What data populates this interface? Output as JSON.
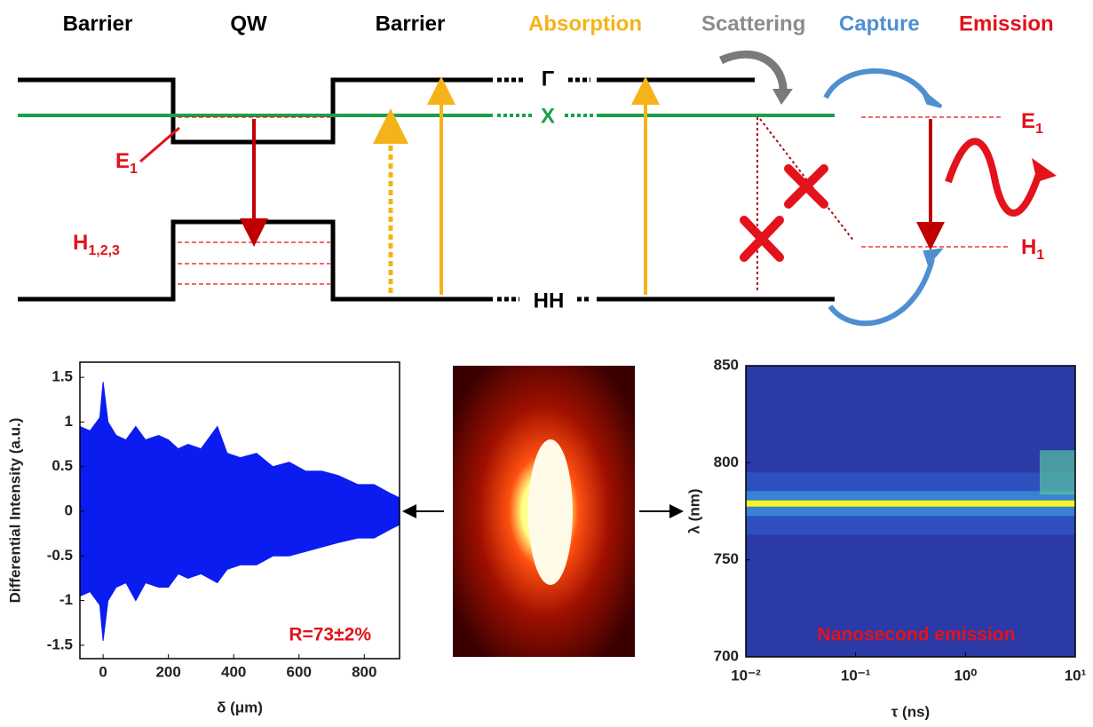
{
  "diagram": {
    "regions": [
      "Barrier",
      "QW",
      "Barrier"
    ],
    "processes": [
      {
        "label": "Absorption",
        "color": "#f5b31a"
      },
      {
        "label": "Scattering",
        "color": "#8c8c8c"
      },
      {
        "label": "Capture",
        "color": "#4f8fcf"
      },
      {
        "label": "Emission",
        "color": "#e3121b"
      }
    ],
    "bands": {
      "gamma": "Γ",
      "x": "X",
      "hh": "HH"
    },
    "qw_levels": {
      "e": "E",
      "e_sub": "1",
      "h": "H",
      "h_sub": "1,2,3"
    },
    "dot_levels": {
      "e": "E",
      "e_sub": "1",
      "h": "H",
      "h_sub": "1"
    }
  },
  "interferogram": {
    "ylabel": "Differential Intensity (a.u.)",
    "xlabel": "δ (μm)",
    "xlim": [
      -71,
      908
    ],
    "ylim": [
      -1.65,
      1.67
    ],
    "xticks": [
      0,
      200,
      400,
      600,
      800
    ],
    "yticks": [
      -1.5,
      -1,
      -0.5,
      0,
      0.5,
      1,
      1.5
    ],
    "annotation": "R=73±2%",
    "envelope_x": [
      -71,
      -40,
      -10,
      0,
      15,
      40,
      70,
      100,
      130,
      170,
      200,
      230,
      260,
      300,
      350,
      380,
      420,
      470,
      520,
      570,
      620,
      670,
      720,
      780,
      830,
      880,
      908
    ],
    "envelope_max": [
      0.95,
      0.9,
      1.05,
      1.45,
      1.0,
      0.85,
      0.8,
      0.95,
      0.8,
      0.85,
      0.8,
      0.7,
      0.75,
      0.7,
      0.95,
      0.65,
      0.6,
      0.65,
      0.5,
      0.55,
      0.45,
      0.45,
      0.4,
      0.3,
      0.3,
      0.2,
      0.15
    ],
    "envelope_min": [
      -0.95,
      -0.9,
      -1.05,
      -1.45,
      -1.0,
      -0.85,
      -0.8,
      -1.0,
      -0.8,
      -0.85,
      -0.85,
      -0.7,
      -0.75,
      -0.7,
      -0.8,
      -0.65,
      -0.6,
      -0.6,
      -0.5,
      -0.5,
      -0.45,
      -0.4,
      -0.35,
      -0.3,
      -0.3,
      -0.2,
      -0.15
    ]
  },
  "spectrogram": {
    "ylabel": "λ (nm)",
    "xlabel": "τ (ns)",
    "log_x": true,
    "xlim": [
      0.01,
      10
    ],
    "ylim": [
      700,
      850
    ],
    "xticks": [
      {
        "value": 0.01,
        "label": "10⁻²"
      },
      {
        "value": 0.1,
        "label": "10⁻¹"
      },
      {
        "value": 1,
        "label": "10⁰"
      },
      {
        "value": 10,
        "label": "10¹"
      }
    ],
    "yticks": [
      700,
      750,
      800,
      850
    ],
    "emission_wavelength": 779,
    "annotation": "Nanosecond emission"
  }
}
